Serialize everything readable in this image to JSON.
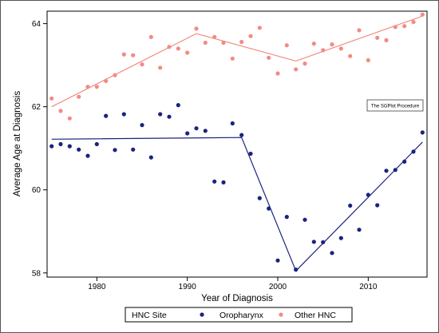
{
  "chart_data": {
    "type": "scatter",
    "xlabel": "Year of Diagnosis",
    "ylabel": "Average Age at Diagnosis",
    "xlim": [
      1974.5,
      2016.5
    ],
    "ylim": [
      57.9,
      64.3
    ],
    "x_ticks": [
      1980,
      1990,
      2000,
      2010
    ],
    "y_ticks": [
      58,
      60,
      62,
      64
    ],
    "grid": false,
    "annotation": "The SGPlot Procedure",
    "legend": {
      "title": "HNC Site",
      "placement": "bottom",
      "entries": [
        "Oropharynx",
        "Other HNC"
      ]
    },
    "series": [
      {
        "name": "Oropharynx",
        "color": "#1a237e",
        "x": [
          1975,
          1976,
          1977,
          1978,
          1979,
          1980,
          1981,
          1982,
          1983,
          1984,
          1985,
          1986,
          1987,
          1988,
          1989,
          1990,
          1991,
          1992,
          1993,
          1994,
          1995,
          1996,
          1997,
          1998,
          1999,
          2000,
          2001,
          2002,
          2003,
          2004,
          2005,
          2006,
          2007,
          2008,
          2009,
          2010,
          2011,
          2012,
          2013,
          2014,
          2015,
          2016
        ],
        "y": [
          61.05,
          61.1,
          61.05,
          60.97,
          60.82,
          61.1,
          61.78,
          60.96,
          61.82,
          60.97,
          61.56,
          60.78,
          61.82,
          61.76,
          62.04,
          61.36,
          61.48,
          61.42,
          60.2,
          60.18,
          61.6,
          61.32,
          60.87,
          59.8,
          59.55,
          58.3,
          59.35,
          58.08,
          59.28,
          58.75,
          58.74,
          58.48,
          58.84,
          59.62,
          59.04,
          59.88,
          59.63,
          60.46,
          60.48,
          60.68,
          60.92,
          61.38
        ]
      },
      {
        "name": "Other HNC",
        "color": "#f28b82",
        "x": [
          1975,
          1976,
          1977,
          1978,
          1979,
          1980,
          1981,
          1982,
          1983,
          1984,
          1985,
          1986,
          1987,
          1988,
          1989,
          1990,
          1991,
          1992,
          1993,
          1994,
          1995,
          1996,
          1997,
          1998,
          1999,
          2000,
          2001,
          2002,
          2003,
          2004,
          2005,
          2006,
          2007,
          2008,
          2009,
          2010,
          2011,
          2012,
          2013,
          2014,
          2015,
          2016
        ],
        "y": [
          62.2,
          61.9,
          61.72,
          62.24,
          62.48,
          62.48,
          62.62,
          62.76,
          63.26,
          63.24,
          63.02,
          63.68,
          62.94,
          63.44,
          63.4,
          63.3,
          63.88,
          63.54,
          63.68,
          63.54,
          63.16,
          63.56,
          63.7,
          63.9,
          63.18,
          62.8,
          63.48,
          62.9,
          63.04,
          63.52,
          63.36,
          63.5,
          63.4,
          63.22,
          63.84,
          63.12,
          63.66,
          63.6,
          63.92,
          63.94,
          64.04,
          64.22
        ]
      }
    ],
    "trend_lines": [
      {
        "series": "Oropharynx",
        "color": "#1a237e",
        "x": [
          1975,
          1996,
          2002,
          2016
        ],
        "y": [
          61.22,
          61.26,
          58.05,
          61.15
        ]
      },
      {
        "series": "Other HNC",
        "color": "#f28b82",
        "x": [
          1975,
          1991,
          2002,
          2016
        ],
        "y": [
          62.0,
          63.76,
          63.1,
          64.18
        ]
      }
    ]
  }
}
